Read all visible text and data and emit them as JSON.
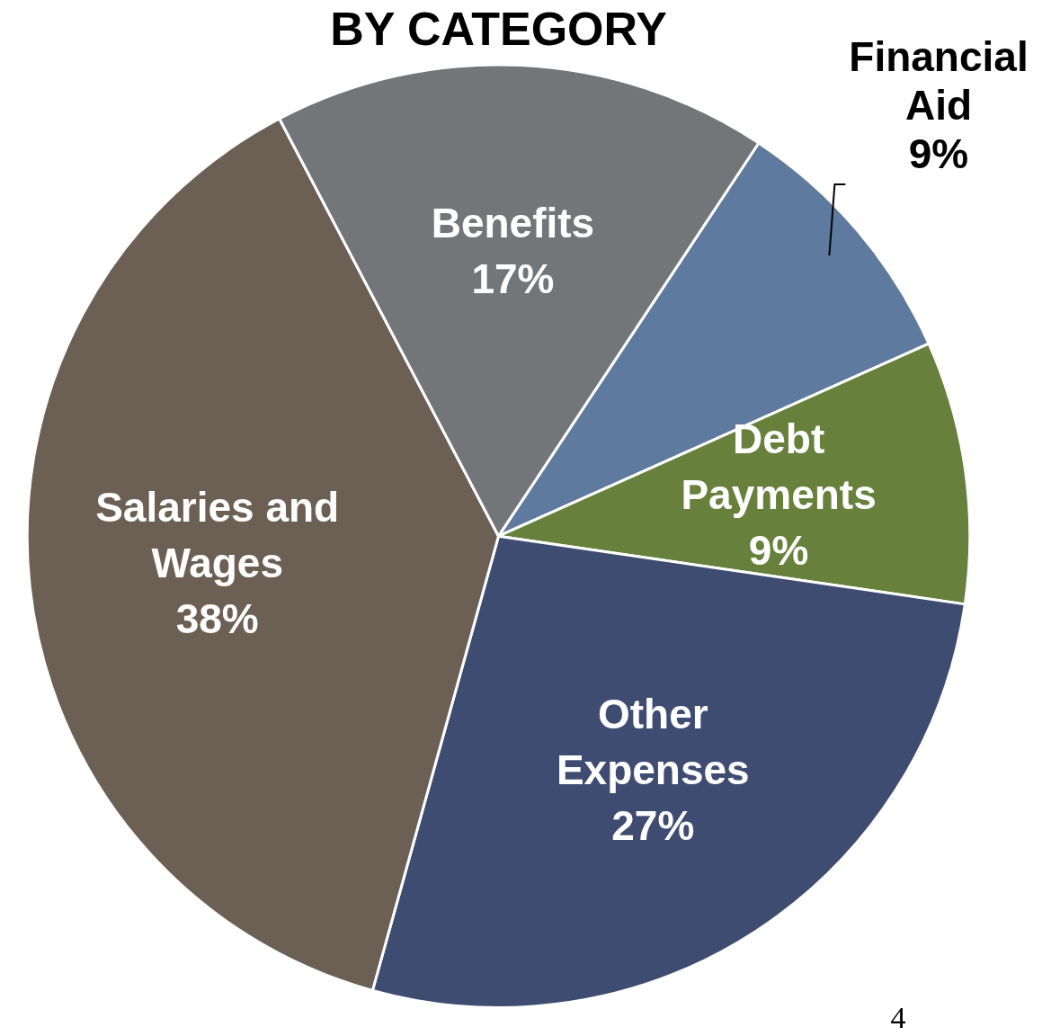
{
  "chart_data": {
    "type": "pie",
    "title": "BY CATEGORY",
    "categories": [
      "Financial Aid",
      "Debt Payments",
      "Other Expenses",
      "Salaries and Wages",
      "Benefits"
    ],
    "values": [
      9,
      9,
      27,
      38,
      17
    ],
    "colors": [
      "#5f7a9f",
      "#67803c",
      "#3f4c72",
      "#6c6055",
      "#737679"
    ],
    "value_labels": [
      "9%",
      "9%",
      "27%",
      "38%",
      "17%"
    ],
    "legend": false,
    "annotations": [
      "4"
    ]
  }
}
